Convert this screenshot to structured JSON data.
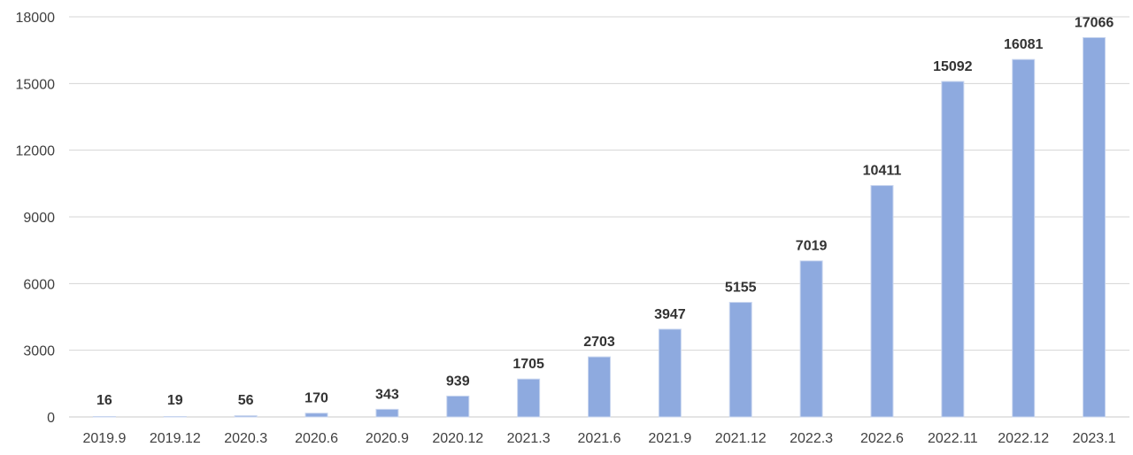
{
  "chart_data": {
    "type": "bar",
    "title": "",
    "xlabel": "",
    "ylabel": "",
    "categories": [
      "2019.9",
      "2019.12",
      "2020.3",
      "2020.6",
      "2020.9",
      "2020.12",
      "2021.3",
      "2021.6",
      "2021.9",
      "2021.12",
      "2022.3",
      "2022.6",
      "2022.11",
      "2022.12",
      "2023.1"
    ],
    "values": [
      16,
      19,
      56,
      170,
      343,
      939,
      1705,
      2703,
      3947,
      5155,
      7019,
      10411,
      15092,
      16081,
      17066
    ],
    "ylim": [
      0,
      18000
    ],
    "yticks": [
      0,
      3000,
      6000,
      9000,
      12000,
      15000,
      18000
    ],
    "grid": true,
    "legend": "none",
    "bar_color": "#8eaadf",
    "data_labels": true
  }
}
